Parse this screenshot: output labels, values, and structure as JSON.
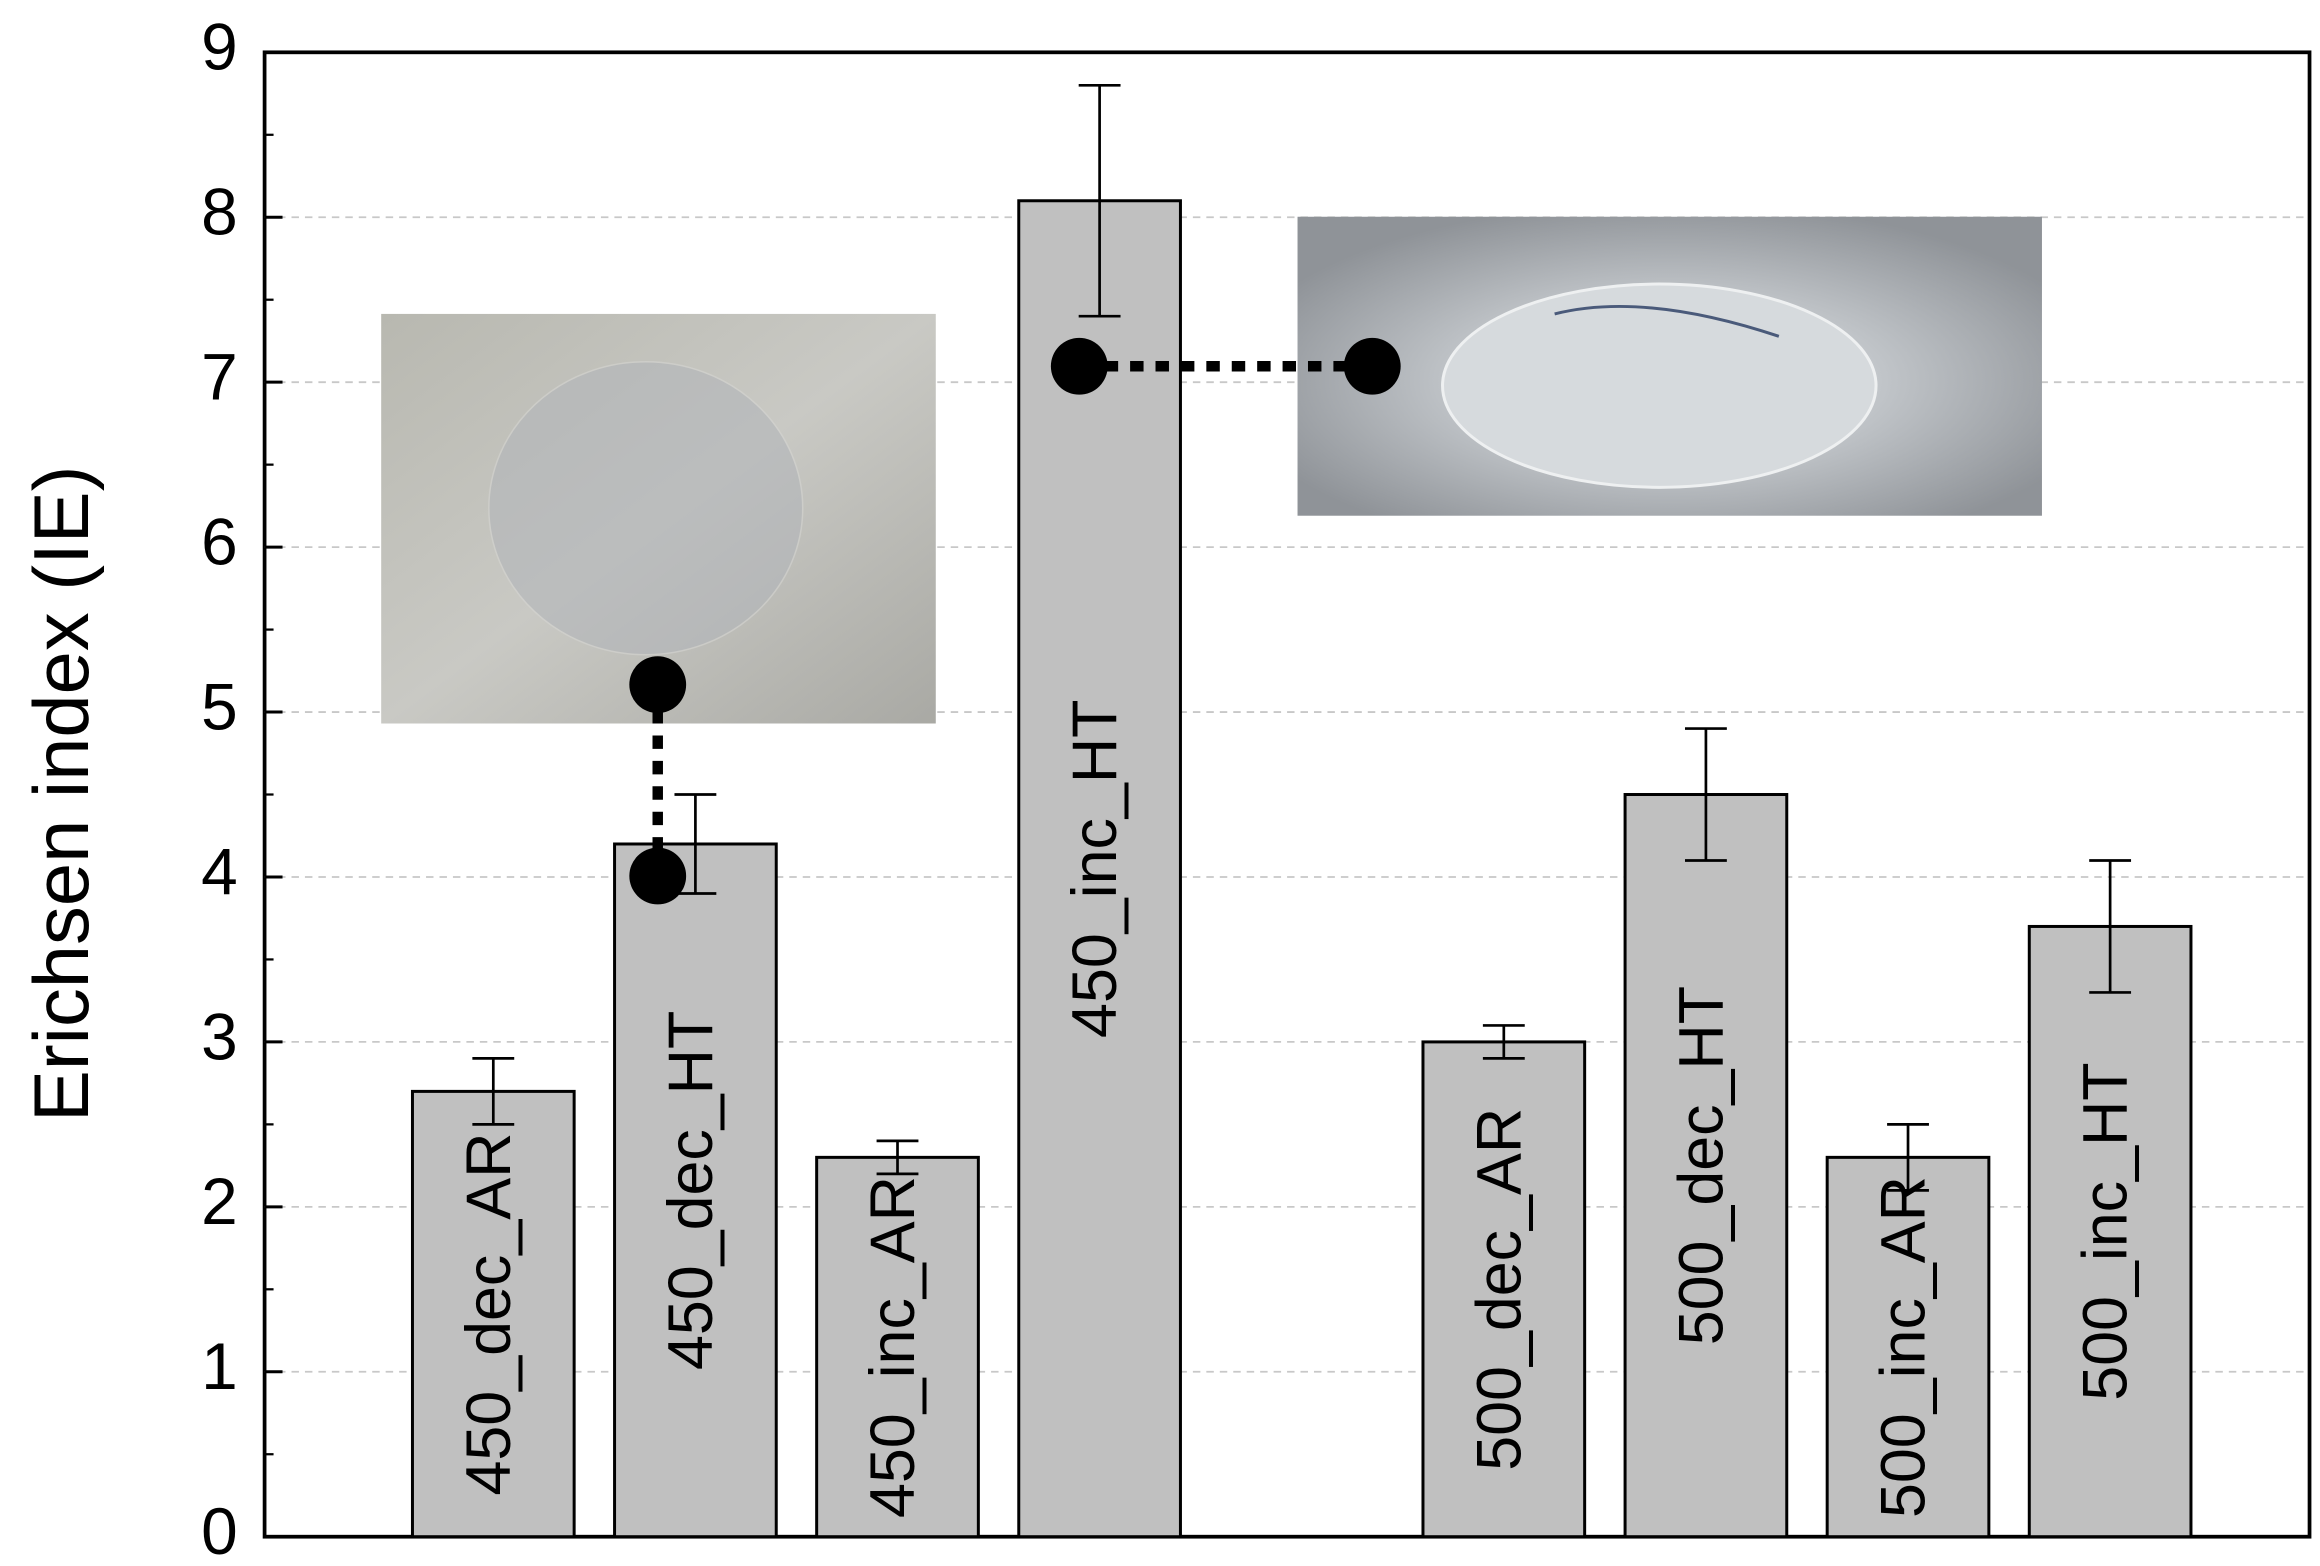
{
  "chart_data": {
    "type": "bar",
    "ylabel": "Erichsen index (IE)",
    "categories": [
      "450_dec_AR",
      "450_dec_HT",
      "450_inc_AR",
      "450_inc_HT",
      null,
      "500_dec_AR",
      "500_dec_HT",
      "500_inc_AR",
      "500_inc_HT"
    ],
    "values": [
      2.7,
      4.2,
      2.3,
      8.1,
      null,
      3.0,
      4.5,
      2.3,
      3.7
    ],
    "errors": [
      0.2,
      0.3,
      0.1,
      0.7,
      null,
      0.1,
      0.4,
      0.2,
      0.4
    ],
    "color": "#c0c0c0",
    "ylim": [
      0,
      9
    ],
    "yticks": [
      0,
      1,
      2,
      3,
      4,
      5,
      6,
      7,
      8,
      9
    ],
    "grid": true
  }
}
